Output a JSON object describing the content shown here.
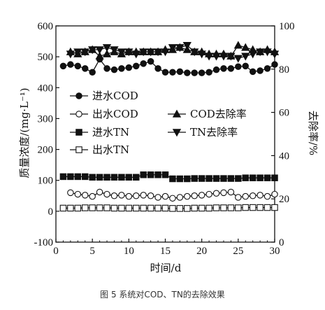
{
  "caption": "图 5 系统对COD、TN的去除效果",
  "chart_data": {
    "type": "line",
    "xlabel": "时间/d",
    "ylabel_left": "质量浓度/(mg·L⁻¹)",
    "ylabel_right": "去除率/%",
    "xlim": [
      0,
      30
    ],
    "ylim_left": [
      -100,
      600
    ],
    "ylim_right": [
      0,
      100
    ],
    "x_ticks": [
      "0",
      "5",
      "10",
      "15",
      "20",
      "25",
      "30"
    ],
    "y_left_ticks": [
      "-100",
      "0",
      "100",
      "200",
      "300",
      "400",
      "500",
      "600"
    ],
    "y_right_ticks": [
      "0",
      "20",
      "40",
      "60",
      "80",
      "100"
    ],
    "x": [
      1,
      2,
      3,
      4,
      5,
      6,
      7,
      8,
      9,
      10,
      11,
      12,
      13,
      14,
      15,
      16,
      17,
      18,
      19,
      20,
      21,
      22,
      23,
      24,
      25,
      26,
      27,
      28,
      29,
      30
    ],
    "series": [
      {
        "name": "进水COD",
        "axis": "left",
        "marker": "circle-filled",
        "values": [
          470,
          475,
          470,
          462,
          450,
          492,
          462,
          458,
          462,
          465,
          470,
          478,
          485,
          462,
          450,
          450,
          452,
          448,
          448,
          448,
          450,
          458,
          462,
          462,
          468,
          470,
          452,
          455,
          462,
          475
        ]
      },
      {
        "name": "出水COD",
        "axis": "left",
        "marker": "circle-open",
        "values": [
          null,
          60,
          55,
          52,
          48,
          62,
          55,
          50,
          52,
          48,
          50,
          52,
          50,
          45,
          48,
          42,
          45,
          48,
          50,
          52,
          55,
          58,
          60,
          62,
          45,
          48,
          50,
          52,
          48,
          55
        ]
      },
      {
        "name": "进水TN",
        "axis": "left",
        "marker": "square-filled",
        "values": [
          112,
          112,
          112,
          112,
          110,
          110,
          110,
          110,
          110,
          110,
          110,
          118,
          118,
          118,
          118,
          105,
          105,
          105,
          106,
          106,
          106,
          106,
          106,
          106,
          106,
          108,
          108,
          108,
          108,
          108
        ]
      },
      {
        "name": "出水TN",
        "axis": "left",
        "marker": "square-open",
        "values": [
          10,
          10,
          10,
          11,
          11,
          11,
          11,
          10,
          10,
          10,
          10,
          10,
          10,
          10,
          10,
          9,
          9,
          9,
          10,
          10,
          10,
          11,
          11,
          11,
          11,
          12,
          12,
          12,
          12,
          12
        ]
      },
      {
        "name": "COD去除率",
        "axis": "right",
        "marker": "triangle-up-filled",
        "values": [
          null,
          88,
          87,
          88,
          89,
          86,
          87,
          88,
          87,
          88,
          88,
          88,
          88,
          88,
          89,
          89,
          90,
          89,
          88,
          88,
          87,
          87,
          87,
          86,
          91,
          90,
          89,
          88,
          89,
          88
        ]
      },
      {
        "name": "TN去除率",
        "axis": "right",
        "marker": "triangle-down-filled",
        "values": [
          null,
          87,
          88,
          88,
          89,
          89,
          90,
          89,
          88,
          88,
          87,
          88,
          88,
          88,
          88,
          90,
          90,
          91,
          88,
          87,
          86,
          86,
          86,
          86,
          85,
          86,
          87,
          88,
          88,
          87
        ]
      }
    ],
    "legend": "inside-left",
    "grid": false
  }
}
